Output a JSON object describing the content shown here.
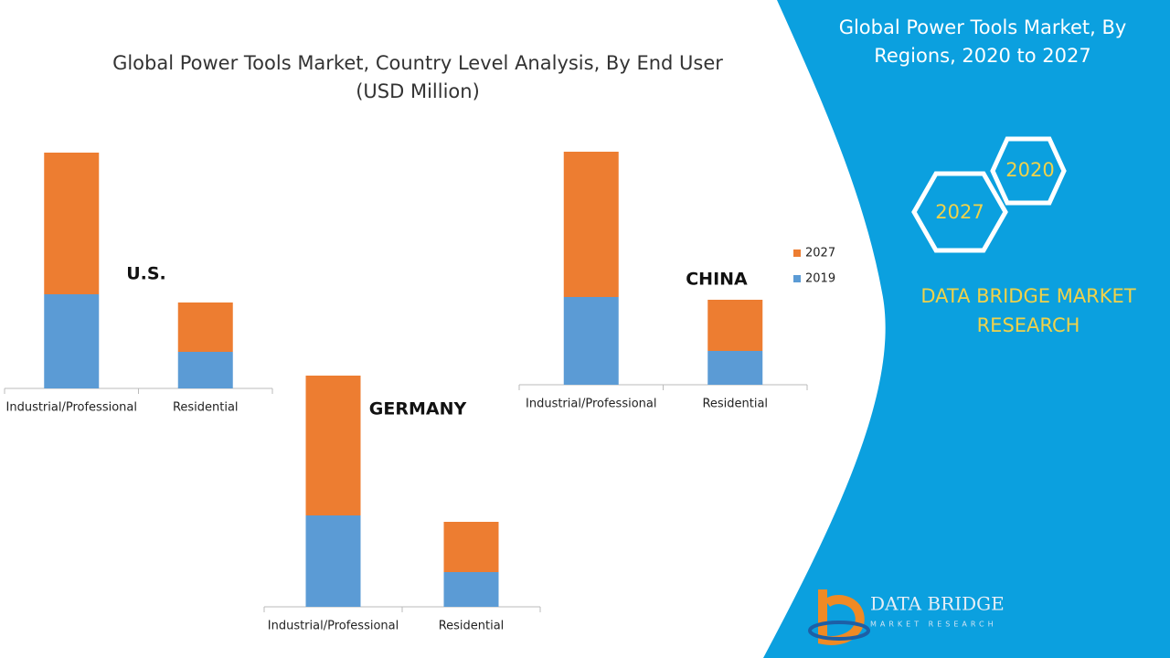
{
  "title": "Global Power Tools Market, Country Level Analysis, By End User",
  "subtitle": "(USD Million)",
  "chart_data": [
    {
      "type": "bar",
      "stacked": true,
      "title": "U.S.",
      "categories": [
        "Industrial/Professional",
        "Residential"
      ],
      "series": [
        {
          "name": "2019",
          "color": "#5b9bd5",
          "values": [
            103,
            40
          ]
        },
        {
          "name": "2027",
          "color": "#ed7d31",
          "values": [
            155,
            54
          ]
        }
      ],
      "ylim": [
        0,
        260
      ]
    },
    {
      "type": "bar",
      "stacked": true,
      "title": "GERMANY",
      "categories": [
        "Industrial/Professional",
        "Residential"
      ],
      "series": [
        {
          "name": "2019",
          "color": "#5b9bd5",
          "values": [
            100,
            38
          ]
        },
        {
          "name": "2027",
          "color": "#ed7d31",
          "values": [
            153,
            55
          ]
        }
      ],
      "ylim": [
        0,
        260
      ]
    },
    {
      "type": "bar",
      "stacked": true,
      "title": "CHINA",
      "categories": [
        "Industrial/Professional",
        "Residential"
      ],
      "series": [
        {
          "name": "2019",
          "color": "#5b9bd5",
          "values": [
            96,
            37
          ]
        },
        {
          "name": "2027",
          "color": "#ed7d31",
          "values": [
            159,
            56
          ]
        }
      ],
      "ylim": [
        0,
        260
      ],
      "legend": "right"
    }
  ],
  "sidebar": {
    "title": "Global Power Tools Market, By Regions, 2020 to 2027",
    "hex_a": "2020",
    "hex_b": "2027",
    "brand": "DATA BRIDGE MARKET RESEARCH",
    "logo_title": "DATA BRIDGE",
    "logo_sub": "MARKET RESEARCH"
  }
}
